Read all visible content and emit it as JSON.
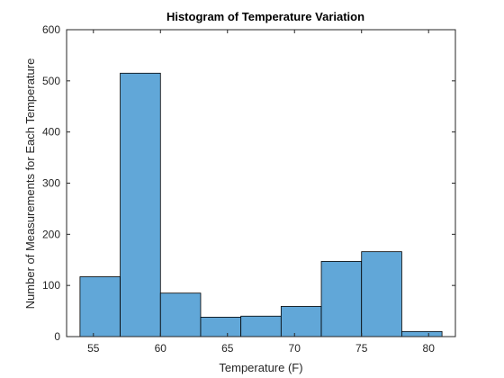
{
  "chart_data": {
    "type": "bar",
    "title": "Histogram of Temperature Variation",
    "xlabel": "Temperature (F)",
    "ylabel": "Number of Measurements for Each Temperature",
    "xlim": [
      53,
      82
    ],
    "ylim": [
      0,
      600
    ],
    "x_ticks": [
      "55",
      "60",
      "65",
      "70",
      "75",
      "80"
    ],
    "y_ticks": [
      "0",
      "100",
      "200",
      "300",
      "400",
      "500",
      "600"
    ],
    "bin_edges": [
      54,
      57,
      60,
      63,
      66,
      69,
      72,
      75,
      78,
      81
    ],
    "values": [
      117,
      515,
      85,
      38,
      40,
      59,
      147,
      166,
      10
    ],
    "bar_color": "#61A7D8",
    "edge_color": "#000000",
    "grid": false
  }
}
